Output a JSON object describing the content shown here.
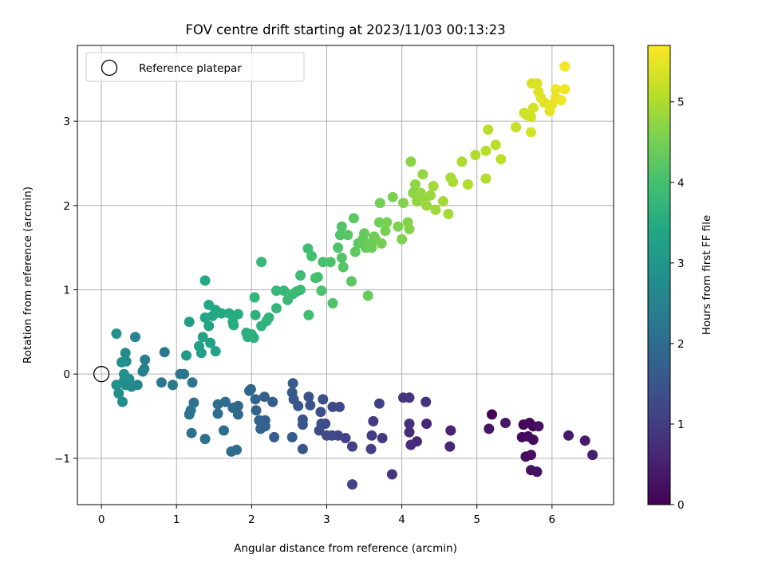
{
  "chart_data": {
    "type": "scatter",
    "title": "FOV centre drift starting at 2023/11/03 00:13:23",
    "xlabel": "Angular distance from reference (arcmin)",
    "ylabel": "Rotation from reference (arcmin)",
    "xlim": [
      -0.32,
      6.82
    ],
    "ylim": [
      -1.55,
      3.9
    ],
    "x_ticks": [
      0,
      1,
      2,
      3,
      4,
      5,
      6
    ],
    "y_ticks": [
      -1,
      0,
      1,
      2,
      3
    ],
    "x_tick_labels": [
      "0",
      "1",
      "2",
      "3",
      "4",
      "5",
      "6"
    ],
    "y_tick_labels": [
      "−1",
      "0",
      "1",
      "2",
      "3"
    ],
    "grid": true,
    "legend": {
      "position": "top-left",
      "entries": [
        "Reference platepar"
      ]
    },
    "reference_point": {
      "x": 0,
      "y": 0,
      "marker": "open-circle"
    },
    "colorbar": {
      "label": "Hours from first FF file",
      "colormap": "viridis",
      "range": [
        0,
        5.7
      ],
      "ticks": [
        0,
        1,
        2,
        3,
        4,
        5
      ],
      "tick_labels": [
        "0",
        "1",
        "2",
        "3",
        "4",
        "5"
      ]
    },
    "points": [
      [
        5.2,
        -0.48,
        0.05
      ],
      [
        5.62,
        -0.6,
        0.08
      ],
      [
        5.7,
        -0.58,
        0.1
      ],
      [
        5.75,
        -0.62,
        0.12
      ],
      [
        5.6,
        -0.75,
        0.15
      ],
      [
        5.68,
        -0.74,
        0.17
      ],
      [
        5.75,
        -0.78,
        0.18
      ],
      [
        5.65,
        -0.98,
        0.2
      ],
      [
        5.72,
        -0.96,
        0.22
      ],
      [
        5.72,
        -1.14,
        0.25
      ],
      [
        5.8,
        -1.16,
        0.27
      ],
      [
        5.82,
        -0.62,
        0.3
      ],
      [
        5.16,
        -0.65,
        0.33
      ],
      [
        5.38,
        -0.58,
        0.36
      ],
      [
        6.22,
        -0.73,
        0.4
      ],
      [
        6.44,
        -0.79,
        0.42
      ],
      [
        6.54,
        -0.96,
        0.45
      ],
      [
        4.65,
        -0.67,
        0.55
      ],
      [
        4.64,
        -0.86,
        0.6
      ],
      [
        4.33,
        -0.59,
        0.65
      ],
      [
        4.2,
        -0.8,
        0.7
      ],
      [
        4.12,
        -0.84,
        0.72
      ],
      [
        4.1,
        -0.69,
        0.75
      ],
      [
        4.1,
        -0.59,
        0.78
      ],
      [
        4.32,
        -0.33,
        0.82
      ],
      [
        4.1,
        -0.28,
        0.85
      ],
      [
        4.02,
        -0.28,
        0.88
      ],
      [
        3.87,
        -1.19,
        0.9
      ],
      [
        3.74,
        -0.76,
        0.95
      ],
      [
        3.62,
        -0.56,
        1.0
      ],
      [
        3.6,
        -0.73,
        1.02
      ],
      [
        3.59,
        -0.89,
        1.05
      ],
      [
        3.7,
        -0.35,
        1.08
      ],
      [
        3.34,
        -0.86,
        1.1
      ],
      [
        3.34,
        -1.31,
        1.12
      ],
      [
        3.25,
        -0.76,
        1.15
      ],
      [
        3.15,
        -0.73,
        1.18
      ],
      [
        3.17,
        -0.39,
        1.2
      ],
      [
        3.07,
        -0.73,
        1.22
      ],
      [
        3.08,
        -0.39,
        1.25
      ],
      [
        3.0,
        -0.73,
        1.28
      ],
      [
        2.98,
        -0.59,
        1.3
      ],
      [
        2.93,
        -0.59,
        1.33
      ],
      [
        2.9,
        -0.67,
        1.35
      ],
      [
        2.92,
        -0.45,
        1.38
      ],
      [
        2.95,
        -0.3,
        1.4
      ],
      [
        2.76,
        -0.27,
        1.43
      ],
      [
        2.78,
        -0.37,
        1.45
      ],
      [
        2.68,
        -0.54,
        1.48
      ],
      [
        2.68,
        -0.6,
        1.5
      ],
      [
        2.68,
        -0.89,
        1.52
      ],
      [
        2.62,
        -0.38,
        1.55
      ],
      [
        2.56,
        -0.3,
        1.57
      ],
      [
        2.54,
        -0.22,
        1.6
      ],
      [
        2.55,
        -0.11,
        1.62
      ],
      [
        2.54,
        -0.75,
        1.64
      ],
      [
        2.3,
        -0.75,
        1.67
      ],
      [
        2.28,
        -0.33,
        1.7
      ],
      [
        2.17,
        -0.27,
        1.72
      ],
      [
        2.18,
        -0.55,
        1.74
      ],
      [
        2.18,
        -0.62,
        1.76
      ],
      [
        2.15,
        -0.6,
        1.78
      ],
      [
        2.1,
        -0.55,
        1.8
      ],
      [
        2.12,
        -0.65,
        1.82
      ],
      [
        2.06,
        -0.43,
        1.84
      ],
      [
        2.05,
        -0.3,
        1.86
      ],
      [
        1.97,
        -0.2,
        1.88
      ],
      [
        1.99,
        -0.18,
        1.9
      ],
      [
        1.82,
        -0.38,
        1.92
      ],
      [
        1.82,
        -0.48,
        1.94
      ],
      [
        1.75,
        -0.4,
        1.96
      ],
      [
        1.8,
        -0.9,
        1.98
      ],
      [
        1.73,
        -0.92,
        2.0
      ],
      [
        1.65,
        -0.33,
        2.02
      ],
      [
        1.63,
        -0.67,
        2.04
      ],
      [
        1.55,
        -0.47,
        2.06
      ],
      [
        1.55,
        -0.36,
        2.08
      ],
      [
        1.38,
        -0.77,
        2.1
      ],
      [
        1.23,
        -0.34,
        2.12
      ],
      [
        1.2,
        -0.7,
        2.14
      ],
      [
        1.17,
        -0.48,
        2.16
      ],
      [
        1.19,
        -0.43,
        2.18
      ],
      [
        1.21,
        -0.1,
        2.2
      ],
      [
        1.05,
        0.0,
        2.22
      ],
      [
        1.1,
        0.0,
        2.24
      ],
      [
        0.95,
        -0.13,
        2.26
      ],
      [
        0.8,
        -0.1,
        2.28
      ],
      [
        0.84,
        0.26,
        2.3
      ],
      [
        0.58,
        0.17,
        2.4
      ],
      [
        0.57,
        0.06,
        2.45
      ],
      [
        0.55,
        0.03,
        2.5
      ],
      [
        0.45,
        0.44,
        2.55
      ],
      [
        0.48,
        -0.13,
        2.6
      ],
      [
        0.4,
        -0.15,
        2.65
      ],
      [
        0.37,
        -0.06,
        2.68
      ],
      [
        0.33,
        0.15,
        2.7
      ],
      [
        0.32,
        0.25,
        2.72
      ],
      [
        0.3,
        -0.08,
        2.75
      ],
      [
        0.32,
        -0.13,
        2.77
      ],
      [
        0.28,
        -0.33,
        2.8
      ],
      [
        0.23,
        -0.23,
        2.82
      ],
      [
        0.2,
        -0.13,
        2.84
      ],
      [
        0.27,
        0.14,
        2.86
      ],
      [
        0.2,
        0.48,
        2.88
      ],
      [
        0.3,
        0.0,
        2.9
      ],
      [
        1.13,
        0.22,
        3.1
      ],
      [
        1.17,
        0.62,
        3.15
      ],
      [
        1.3,
        0.33,
        3.2
      ],
      [
        1.33,
        0.25,
        3.22
      ],
      [
        1.35,
        0.44,
        3.25
      ],
      [
        1.45,
        0.37,
        3.28
      ],
      [
        1.52,
        0.27,
        3.3
      ],
      [
        1.43,
        0.57,
        3.32
      ],
      [
        1.38,
        0.67,
        3.34
      ],
      [
        1.48,
        0.69,
        3.36
      ],
      [
        1.52,
        0.76,
        3.38
      ],
      [
        1.55,
        0.73,
        3.4
      ],
      [
        1.43,
        0.82,
        3.42
      ],
      [
        1.38,
        1.11,
        3.44
      ],
      [
        1.6,
        0.72,
        3.46
      ],
      [
        1.7,
        0.72,
        3.48
      ],
      [
        1.75,
        0.62,
        3.5
      ],
      [
        1.76,
        0.58,
        3.52
      ],
      [
        1.82,
        0.71,
        3.54
      ],
      [
        1.93,
        0.49,
        3.56
      ],
      [
        1.95,
        0.44,
        3.58
      ],
      [
        2.0,
        0.47,
        3.6
      ],
      [
        2.03,
        0.43,
        3.62
      ],
      [
        2.05,
        0.7,
        3.64
      ],
      [
        2.13,
        0.57,
        3.66
      ],
      [
        2.2,
        0.63,
        3.68
      ],
      [
        2.23,
        0.67,
        3.7
      ],
      [
        2.33,
        0.78,
        3.72
      ],
      [
        2.04,
        0.91,
        3.74
      ],
      [
        2.13,
        1.33,
        3.76
      ],
      [
        2.33,
        0.99,
        3.78
      ],
      [
        2.43,
        0.99,
        3.8
      ],
      [
        2.48,
        0.88,
        3.82
      ],
      [
        2.55,
        0.95,
        3.84
      ],
      [
        2.6,
        0.98,
        3.86
      ],
      [
        2.65,
        1.0,
        3.88
      ],
      [
        2.65,
        1.17,
        3.9
      ],
      [
        2.75,
        1.49,
        3.92
      ],
      [
        2.76,
        0.7,
        3.94
      ],
      [
        2.85,
        1.14,
        3.96
      ],
      [
        2.8,
        1.4,
        3.98
      ],
      [
        2.88,
        1.15,
        4.0
      ],
      [
        2.95,
        1.33,
        4.02
      ],
      [
        2.93,
        0.99,
        4.04
      ],
      [
        3.05,
        1.33,
        4.06
      ],
      [
        3.08,
        0.84,
        4.08
      ],
      [
        3.15,
        1.5,
        4.1
      ],
      [
        3.18,
        1.65,
        4.12
      ],
      [
        3.2,
        1.75,
        4.14
      ],
      [
        3.2,
        1.38,
        4.16
      ],
      [
        3.22,
        1.27,
        4.18
      ],
      [
        3.28,
        1.65,
        4.2
      ],
      [
        3.33,
        1.1,
        4.22
      ],
      [
        3.36,
        1.85,
        4.24
      ],
      [
        3.38,
        1.45,
        4.26
      ],
      [
        3.42,
        1.55,
        4.28
      ],
      [
        3.48,
        1.6,
        4.3
      ],
      [
        3.5,
        1.67,
        4.32
      ],
      [
        3.52,
        1.5,
        4.34
      ],
      [
        3.55,
        0.93,
        4.36
      ],
      [
        3.57,
        1.55,
        4.38
      ],
      [
        3.6,
        1.5,
        4.4
      ],
      [
        3.63,
        1.63,
        4.42
      ],
      [
        3.65,
        1.6,
        4.44
      ],
      [
        3.7,
        1.8,
        4.46
      ],
      [
        3.71,
        2.03,
        4.48
      ],
      [
        3.73,
        1.55,
        4.5
      ],
      [
        3.78,
        1.7,
        4.52
      ],
      [
        3.8,
        1.8,
        4.54
      ],
      [
        3.88,
        2.1,
        4.56
      ],
      [
        3.95,
        1.75,
        4.58
      ],
      [
        4.0,
        1.6,
        4.6
      ],
      [
        4.02,
        2.03,
        4.62
      ],
      [
        4.08,
        1.8,
        4.64
      ],
      [
        4.1,
        1.72,
        4.66
      ],
      [
        4.12,
        2.52,
        4.68
      ],
      [
        4.15,
        2.15,
        4.7
      ],
      [
        4.18,
        2.25,
        4.72
      ],
      [
        4.2,
        2.05,
        4.74
      ],
      [
        4.25,
        2.15,
        4.76
      ],
      [
        4.28,
        2.37,
        4.78
      ],
      [
        4.3,
        2.05,
        4.8
      ],
      [
        4.33,
        2.0,
        4.82
      ],
      [
        4.38,
        2.12,
        4.84
      ],
      [
        4.45,
        1.95,
        4.86
      ],
      [
        4.42,
        2.23,
        4.88
      ],
      [
        4.55,
        2.05,
        4.9
      ],
      [
        4.62,
        1.9,
        4.92
      ],
      [
        4.65,
        2.33,
        4.94
      ],
      [
        4.68,
        2.28,
        4.96
      ],
      [
        4.8,
        2.52,
        4.98
      ],
      [
        4.88,
        2.25,
        5.0
      ],
      [
        4.98,
        2.6,
        5.02
      ],
      [
        5.12,
        2.32,
        5.04
      ],
      [
        5.12,
        2.65,
        5.06
      ],
      [
        5.15,
        2.9,
        5.08
      ],
      [
        5.25,
        2.72,
        5.1
      ],
      [
        5.32,
        2.55,
        5.12
      ],
      [
        5.52,
        2.93,
        5.2
      ],
      [
        5.63,
        3.1,
        5.25
      ],
      [
        5.67,
        3.07,
        5.28
      ],
      [
        5.72,
        3.05,
        5.3
      ],
      [
        5.72,
        2.87,
        5.32
      ],
      [
        5.75,
        3.16,
        5.35
      ],
      [
        5.73,
        3.45,
        5.38
      ],
      [
        5.8,
        3.45,
        5.4
      ],
      [
        5.82,
        3.35,
        5.42
      ],
      [
        5.85,
        3.28,
        5.44
      ],
      [
        5.9,
        3.22,
        5.46
      ],
      [
        5.97,
        3.12,
        5.48
      ],
      [
        6.0,
        3.2,
        5.5
      ],
      [
        6.05,
        3.28,
        5.52
      ],
      [
        6.05,
        3.38,
        5.54
      ],
      [
        6.12,
        3.25,
        5.56
      ],
      [
        6.17,
        3.38,
        5.58
      ],
      [
        6.17,
        3.65,
        5.6
      ]
    ]
  }
}
